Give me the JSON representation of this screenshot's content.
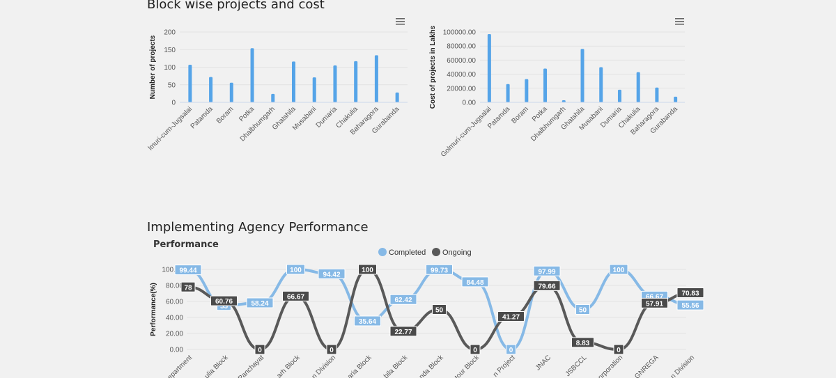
{
  "sections": {
    "block_title": "Block wise projects and cost",
    "agency_title": "Implementing Agency Performance"
  },
  "menu_icon": "hamburger-menu-icon",
  "colors": {
    "bar": "#55a4e8",
    "completed": "#86b9e6",
    "ongoing": "#595959",
    "grid": "#e3e3e3"
  },
  "chart_data": [
    {
      "type": "bar",
      "title": "",
      "ylabel": "Number of projects",
      "xlabel": "",
      "categories": [
        "Golmuri-cum-Jugsalai",
        "Patamda",
        "Boram",
        "Potka",
        "Dhalbhumgarh",
        "Ghatshila",
        "Musabani",
        "Dumaria",
        "Chakulia",
        "Baharagora",
        "Gurabanda"
      ],
      "category_labels": [
        "lmuri-cum-Jugsalai",
        "Patamda",
        "Boram",
        "Potka",
        "Dhalbhumgarh",
        "Ghatshila",
        "Musabani",
        "Dumaria",
        "Chakulia",
        "Baharagora",
        "Gurabanda"
      ],
      "values": [
        107,
        72,
        56,
        154,
        24,
        116,
        71,
        105,
        117,
        134,
        28
      ],
      "ylim": [
        0,
        200
      ],
      "yticks": [
        "0",
        "50",
        "100",
        "150",
        "200"
      ]
    },
    {
      "type": "bar",
      "title": "",
      "ylabel": "Cost of projects in Lakhs",
      "xlabel": "",
      "categories": [
        "Golmuri-cum-Jugsalai",
        "Patamda",
        "Boram",
        "Potka",
        "Dhalbhumgarh",
        "Ghatshila",
        "Musabani",
        "Dumaria",
        "Chakulia",
        "Baharagora",
        "Gurabanda"
      ],
      "category_labels": [
        "Golmuri-cum-Jugsalai",
        "Patamda",
        "Boram",
        "Potka",
        "Dhalbhumgarh",
        "Ghatshila",
        "Musabani",
        "Dumaria",
        "Chakulia",
        "Baharagora",
        "Gurabanda"
      ],
      "values": [
        97000,
        26000,
        33000,
        48000,
        3000,
        76000,
        50000,
        18000,
        43000,
        21000,
        8000
      ],
      "ylim": [
        0,
        100000
      ],
      "yticks": [
        "0.00",
        "20000.00",
        "40000.00",
        "60000.00",
        "80000.00",
        "100000.00"
      ]
    },
    {
      "type": "line",
      "title": "Performance",
      "ylabel": "Performance(%)",
      "xlabel": "",
      "ylim": [
        0,
        100
      ],
      "yticks": [
        "0.00",
        "20.00",
        "40.00",
        "60.00",
        "80.00",
        "100.00"
      ],
      "categories": [
        "Department",
        "Chakulia Block",
        "Panchayat",
        "Ghatshila Garh Block",
        "Division",
        "Dumaria Block",
        "Musabani Block",
        "Gurabanda Block",
        "Potka Block",
        "Project",
        "JNAC",
        "JSBCCL",
        "Corporation",
        "MGNREGA",
        "Division"
      ],
      "category_labels": [
        "epartment",
        "ulia Block",
        "Panchayat",
        "arh Block",
        "n Division",
        "aria Block",
        "bila Block",
        "nda Block",
        "tour Block",
        "n Project",
        "JNAC",
        "JSBCCL",
        "orporation",
        "GNREGA",
        "n Division"
      ],
      "series": [
        {
          "name": "Completed",
          "values": [
            99.44,
            55,
            58.24,
            100,
            94.42,
            35.64,
            62.42,
            99.73,
            84.48,
            0,
            97.99,
            50,
            100,
            66.67,
            55.56
          ],
          "labels": [
            "99.44",
            "55",
            "58.24",
            "100",
            "94.42",
            "35.64",
            "62.42",
            "99.73",
            "84.48",
            "0",
            "97.99",
            "50",
            "100",
            "66.67",
            "55.56"
          ]
        },
        {
          "name": "Ongoing",
          "values": [
            78,
            60.76,
            0,
            66.67,
            0,
            100,
            22.77,
            50,
            0,
            41.27,
            79.66,
            8.83,
            0,
            57.91,
            70.83
          ],
          "labels": [
            "78",
            "60.76",
            "0",
            "66.67",
            "0",
            "100",
            "22.77",
            "50",
            "0",
            "41.27",
            "79.66",
            "8.83",
            "0",
            "57.91",
            "70.83"
          ]
        }
      ]
    }
  ]
}
